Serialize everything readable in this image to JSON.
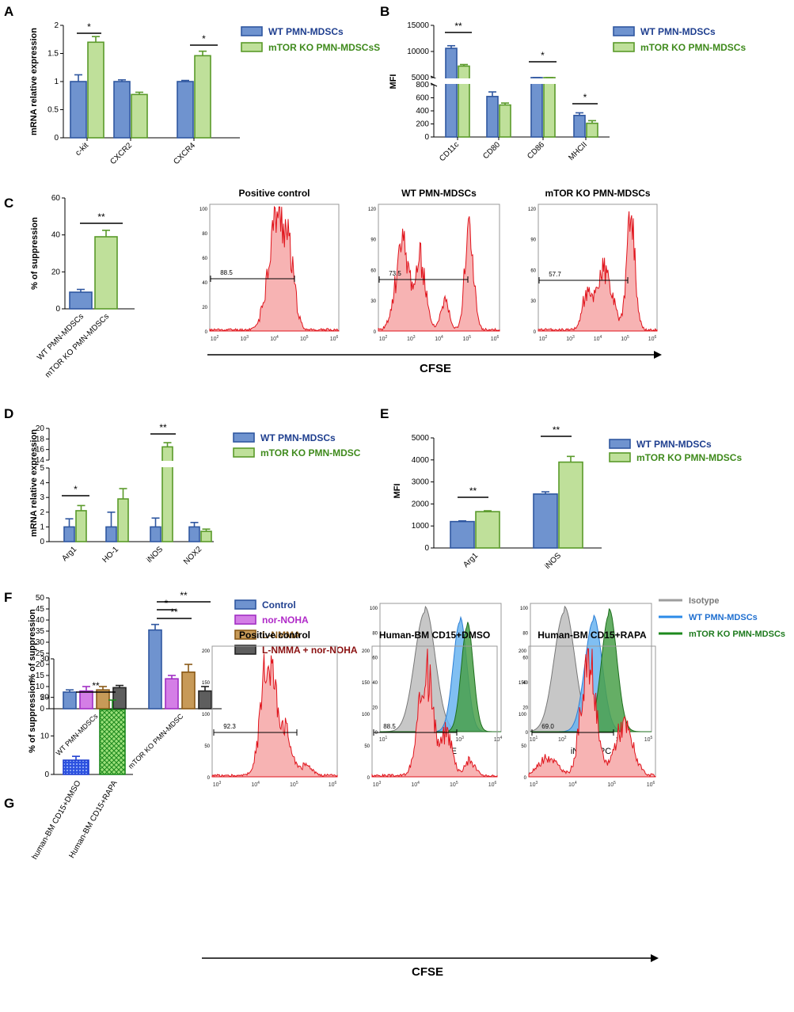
{
  "colors": {
    "wt": "#6f93cf",
    "wt_edge": "#2f57a0",
    "ko": "#bfe09a",
    "ko_edge": "#5a9a2a",
    "hist": "#f7b3b3",
    "hist_edge": "#e0141c",
    "grey": "#bdbdbd",
    "blue_hist": "#6ab4f0",
    "green_hist": "#4aa04a",
    "magenta": "#d47ee6",
    "brown": "#c79a58",
    "darkgrey": "#5e5e5e",
    "legend_blue_text": "#1f3f8f",
    "legend_green_text": "#3f8a1c",
    "legend_red_text": "#8a1010"
  },
  "panels": {
    "A": "A",
    "B": "B",
    "C": "C",
    "D": "D",
    "E": "E",
    "F": "F",
    "G": "G"
  },
  "chart_data": [
    {
      "panel": "A",
      "type": "bar",
      "ylabel": "mRNA relative expression",
      "categories": [
        "c-kit",
        "CXCR2",
        "CXCR4"
      ],
      "ylim": [
        0,
        2.0
      ],
      "yticks": [
        0.0,
        0.5,
        1.0,
        1.5,
        2.0
      ],
      "series": [
        {
          "name": "WT PMN-MDSCs",
          "values": [
            1.0,
            1.0,
            1.0
          ],
          "errors": [
            0.12,
            0.03,
            0.02
          ]
        },
        {
          "name": "mTOR KO PMN-MDSCsS",
          "values": [
            1.7,
            0.77,
            1.46
          ],
          "errors": [
            0.1,
            0.04,
            0.08
          ]
        }
      ],
      "sig": [
        {
          "cat": 0,
          "label": "*"
        },
        {
          "cat": 2,
          "label": "*"
        }
      ]
    },
    {
      "panel": "B",
      "type": "bar",
      "ylabel": "MFI",
      "categories": [
        "CD11c",
        "CD80",
        "CD86",
        "MHCII"
      ],
      "yticks_low": [
        0,
        200,
        400,
        600,
        800
      ],
      "yticks_high": [
        5000,
        10000,
        15000
      ],
      "series": [
        {
          "name": "WT PMN-MDSCs",
          "values": [
            10600,
            620,
            4000,
            330
          ],
          "errors": [
            500,
            70,
            200,
            40
          ]
        },
        {
          "name": "mTOR KO PMN-MDSCs",
          "values": [
            7200,
            490,
            3000,
            210
          ],
          "errors": [
            300,
            30,
            150,
            40
          ]
        }
      ],
      "sig": [
        {
          "cat": 0,
          "label": "**"
        },
        {
          "cat": 2,
          "label": "*"
        },
        {
          "cat": 3,
          "label": "*"
        }
      ]
    },
    {
      "panel": "C",
      "type": "bar",
      "ylabel": "% of suppression",
      "categories": [
        "WT PMN-MDSCs",
        "mTOR KO PMN-MDSCs"
      ],
      "ylim": [
        0,
        60
      ],
      "yticks": [
        0,
        20,
        40,
        60
      ],
      "values": [
        9,
        39
      ],
      "errors": [
        1.5,
        3.5
      ],
      "sig": "**"
    },
    {
      "panel": "C",
      "type": "histogram",
      "titles": [
        "Positive control",
        "WT PMN-MDSCs",
        "mTOR KO PMN-MDSCs"
      ],
      "gates": [
        "88.5",
        "73.5",
        "57.7"
      ],
      "xlabel": "CFSE",
      "yticks": [
        [
          "0",
          "20",
          "40",
          "60",
          "80",
          "100"
        ],
        [
          "0",
          "30",
          "60",
          "90",
          "120"
        ],
        [
          "0",
          "30",
          "60",
          "90",
          "120"
        ]
      ],
      "xticks": [
        "10^2",
        "10^3",
        "10^4",
        "10^5",
        "10^6"
      ]
    },
    {
      "panel": "D",
      "type": "bar",
      "ylabel": "mRNA relative expression",
      "categories": [
        "Arg1",
        "HO-1",
        "iNOS",
        "NOX2"
      ],
      "yticks": [
        "0",
        "1",
        "2",
        "3",
        "4",
        "5",
        "14",
        "16",
        "18",
        "20"
      ],
      "series": [
        {
          "name": "WT PMN-MDSCs",
          "values": [
            1.0,
            1.0,
            1.0,
            1.0
          ],
          "errors": [
            0.55,
            1.0,
            0.6,
            0.3
          ]
        },
        {
          "name": "mTOR KO PMN-MDSC",
          "values": [
            2.1,
            2.9,
            16.5,
            0.7
          ],
          "errors": [
            0.35,
            0.7,
            0.8,
            0.15
          ]
        }
      ],
      "sig": [
        {
          "cat": 0,
          "label": "*"
        },
        {
          "cat": 2,
          "label": "**"
        }
      ]
    },
    {
      "panel": "E",
      "type": "bar",
      "ylabel": "MFI",
      "categories": [
        "Arg1",
        "iNOS"
      ],
      "ylim": [
        0,
        5000
      ],
      "yticks": [
        0,
        1000,
        2000,
        3000,
        4000,
        5000
      ],
      "series": [
        {
          "name": "WT PMN-MDSCs",
          "values": [
            1200,
            2450
          ],
          "errors": [
            30,
            100
          ]
        },
        {
          "name": "mTOR KO PMN-MDSCs",
          "values": [
            1650,
            3900
          ],
          "errors": [
            40,
            260
          ]
        }
      ],
      "sig": [
        {
          "cat": 0,
          "label": "**"
        },
        {
          "cat": 1,
          "label": "**"
        }
      ]
    },
    {
      "panel": "F",
      "type": "bar",
      "ylabel": "% of suppression",
      "categories": [
        "WT PMN-MDSCs",
        "mTOR KO PMN-MDSC"
      ],
      "ylim": [
        0,
        50
      ],
      "yticks": [
        0,
        5,
        10,
        15,
        20,
        25,
        30,
        35,
        40,
        45,
        50
      ],
      "series": [
        {
          "name": "Control",
          "values": [
            7.5,
            35.5
          ],
          "errors": [
            1,
            2.5
          ]
        },
        {
          "name": "nor-NOHA",
          "values": [
            8,
            13.5
          ],
          "errors": [
            2,
            1.5
          ]
        },
        {
          "name": "L-NMMA",
          "values": [
            8.5,
            16.5
          ],
          "errors": [
            1.5,
            3.5
          ]
        },
        {
          "name": "L-NMMA + nor-NOHA",
          "values": [
            9.5,
            8
          ],
          "errors": [
            1,
            2
          ]
        }
      ],
      "sig": [
        "**",
        "*",
        "**"
      ]
    },
    {
      "panel": "F",
      "type": "histogram",
      "xlabels": [
        "Arg1 PE",
        "iNOS APC"
      ],
      "legend": [
        "Isotype",
        "WT PMN-MDSCs",
        "mTOR KO PMN-MDSCs"
      ],
      "yticks": [
        "0",
        "20",
        "40",
        "60",
        "80",
        "100"
      ],
      "xticks": [
        "10^1",
        "10^2",
        "10^3",
        "10^4"
      ],
      "xticks2": [
        "10^1",
        "10^2",
        "10^3",
        "10^4",
        "10^5"
      ]
    },
    {
      "panel": "G",
      "type": "bar",
      "ylabel": "% of suppression",
      "categories": [
        "human-BM CD15+DMSO",
        "Human-BM CD15+RAPA"
      ],
      "ylim": [
        0,
        30
      ],
      "yticks": [
        0,
        10,
        20,
        30
      ],
      "values": [
        3.7,
        16.8
      ],
      "errors": [
        1.0,
        2.5
      ],
      "sig": "**"
    },
    {
      "panel": "G",
      "type": "histogram",
      "titles": [
        "Positive control",
        "Human-BM CD15+DMSO",
        "Human-BM CD15+RAPA"
      ],
      "gates": [
        "92.3",
        "88.5",
        "69.0"
      ],
      "xlabel": "CFSE",
      "yticks": [
        "0",
        "50",
        "100",
        "150",
        "200"
      ],
      "xticks": [
        "10^3",
        "10^4",
        "10^5",
        "10^6"
      ]
    }
  ]
}
